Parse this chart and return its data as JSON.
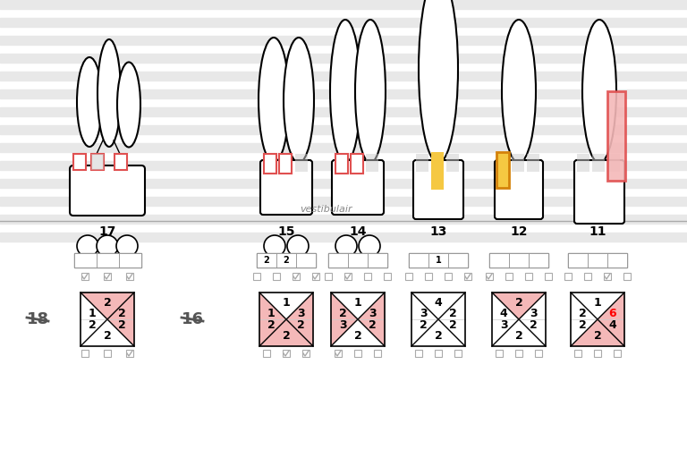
{
  "bg_color": "#ffffff",
  "stripe_color": "#e8e8e8",
  "tooth_color": "#000000",
  "pink_fill": "#f4b8b8",
  "pink_light": "#f9d0d0",
  "yellow_fill": "#f5c842",
  "orange_fill": "#d4820a",
  "red_fill": "#e63030",
  "gray_fill": "#cccccc",
  "red_rect_color": "#e05050",
  "tooth_numbers_top": [
    17,
    15,
    14,
    13,
    12,
    11
  ],
  "vestibulair_label": "vestibulair",
  "label_18": "18",
  "label_16": "16",
  "perio_cells": {
    "17": {
      "top": [
        "",
        "",
        ""
      ],
      "checked": [
        true,
        true,
        true
      ],
      "quadrant": {
        "tl": 1,
        "t": 2,
        "tr": 2,
        "bl": 2,
        "b": 2,
        "br": 2
      },
      "pink_tl": true,
      "pink_tr": true,
      "pink_bl": false,
      "pink_br": false
    },
    "15": {
      "top": [
        "2",
        "2",
        ""
      ],
      "checked": [
        false,
        false,
        true,
        true
      ],
      "quadrant": {
        "tl": 1,
        "t": 1,
        "tr": 3,
        "bl": 2,
        "b": 2,
        "br": 2
      },
      "pink_tl": false,
      "pink_tr": true,
      "pink_bl": true,
      "pink_br": true
    },
    "14": {
      "top": [
        "",
        "",
        ""
      ],
      "checked": [
        false,
        true,
        false,
        false
      ],
      "quadrant": {
        "tl": 2,
        "t": 1,
        "tr": 3,
        "bl": 3,
        "b": 2,
        "br": 2
      },
      "pink_tl": false,
      "pink_tr": true,
      "pink_bl": false,
      "pink_br": true
    },
    "13": {
      "top": [
        "",
        "1",
        ""
      ],
      "checked": [
        false,
        false,
        false,
        true
      ],
      "quadrant": {
        "tl": 3,
        "t": 4,
        "tr": 2,
        "bl": 2,
        "b": 2,
        "br": 2
      },
      "pink_tl": false,
      "pink_tr": false,
      "pink_bl": false,
      "pink_br": false
    },
    "12": {
      "top": [
        "",
        "",
        ""
      ],
      "checked": [
        true,
        false,
        false,
        false
      ],
      "quadrant": {
        "tl": 4,
        "t": 2,
        "tr": 3,
        "bl": 3,
        "b": 2,
        "br": 2
      },
      "pink_tl": true,
      "pink_tr": false,
      "pink_bl": false,
      "pink_br": false
    },
    "11": {
      "top": [
        "",
        "",
        ""
      ],
      "checked": [
        false,
        false,
        true
      ],
      "quadrant": {
        "tl": 2,
        "t": 1,
        "tr": 6,
        "bl": 2,
        "b": 2,
        "br": 4
      },
      "pink_tl": false,
      "pink_tr": true,
      "pink_bl": true,
      "pink_br": false
    }
  }
}
